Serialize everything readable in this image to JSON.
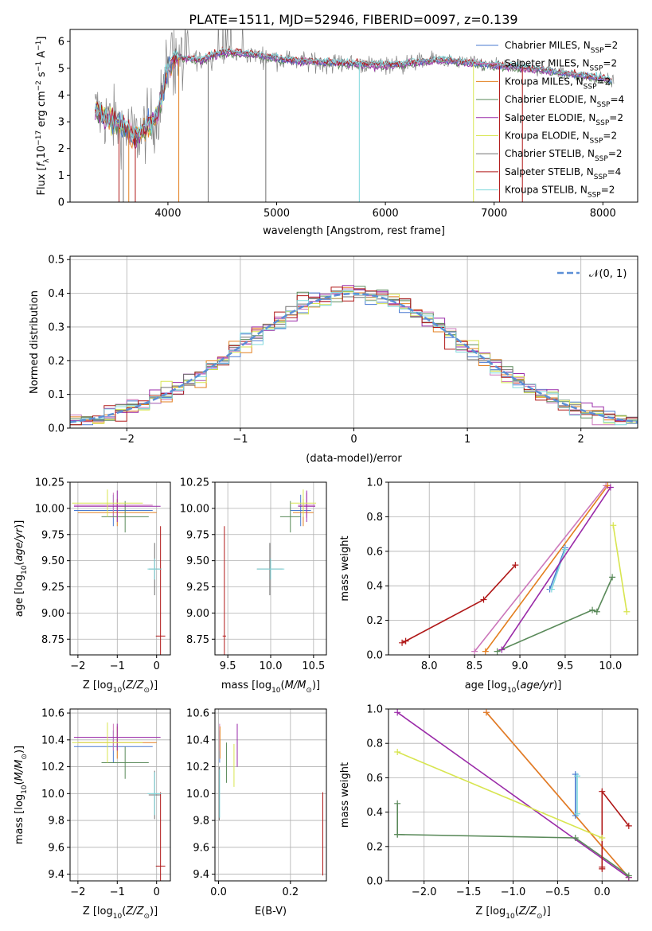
{
  "chart_data": [
    {
      "type": "line",
      "title": "PLATE=1511, MJD=52946, FIBERID=0097, z=0.139",
      "xlabel": "wavelength [Angstrom, rest frame]",
      "ylabel": "Flux [f_λ 10^-17 erg cm^-2 s^-1 A^-1]",
      "xlim": [
        3100,
        8320
      ],
      "ylim": [
        0,
        6.45
      ],
      "xticks": [
        "4000",
        "5000",
        "6000",
        "7000",
        "8000"
      ],
      "yticks": [
        "0",
        "1",
        "2",
        "3",
        "4",
        "5",
        "6"
      ],
      "legend_position": "right",
      "legend": [
        {
          "label": "Chabrier MILES, N_SSP=2",
          "color": "#4a7ad1"
        },
        {
          "label": "Salpeter MILES, N_SSP=2",
          "color": "#cc77bb"
        },
        {
          "label": "Kroupa MILES, N_SSP=2",
          "color": "#e37f1f"
        },
        {
          "label": "Chabrier ELODIE, N_SSP=4",
          "color": "#5a8a5a"
        },
        {
          "label": "Salpeter ELODIE, N_SSP=2",
          "color": "#9a2aa8"
        },
        {
          "label": "Kroupa ELODIE, N_SSP=2",
          "color": "#d8e550"
        },
        {
          "label": "Chabrier STELIB, N_SSP=2",
          "color": "#707070"
        },
        {
          "label": "Salpeter STELIB, N_SSP=4",
          "color": "#b01818"
        },
        {
          "label": "Kroupa STELIB, N_SSP=2",
          "color": "#7fd8dc"
        }
      ],
      "continuum_profile": {
        "x": [
          3330,
          3500,
          3600,
          3700,
          3800,
          3900,
          4000,
          4100,
          4300,
          4500,
          4800,
          5100,
          5500,
          6000,
          6500,
          7000,
          7500,
          8000,
          8100
        ],
        "y": [
          3.4,
          3.0,
          2.8,
          2.4,
          2.8,
          3.2,
          5.0,
          5.4,
          5.3,
          5.6,
          5.5,
          5.3,
          5.2,
          5.1,
          5.3,
          5.1,
          4.9,
          4.6,
          4.5
        ]
      }
    },
    {
      "type": "step",
      "xlabel": "(data-model)/error",
      "ylabel": "Normed distribution",
      "xlim": [
        -2.5,
        2.5
      ],
      "ylim": [
        0,
        0.51
      ],
      "xticks": [
        "−2",
        "−1",
        "0",
        "1",
        "2"
      ],
      "yticks": [
        "0.0",
        "0.1",
        "0.2",
        "0.3",
        "0.4",
        "0.5"
      ],
      "grid": true,
      "legend_position": "top-right",
      "reference_curve": {
        "label": "𝒩(0, 1)",
        "color": "#5b8fd6",
        "style": "dashed"
      },
      "bin_width": 0.1,
      "n_histograms": 9
    },
    {
      "type": "scatter",
      "xlabel": "Z [log10(Z/Z⊙)]",
      "ylabel": "age  [log10(age/yr)]",
      "xlim": [
        -2.2,
        0.35
      ],
      "ylim": [
        8.6,
        10.25
      ],
      "xticks": [
        "−2",
        "−1",
        "0"
      ],
      "yticks": [
        "8.75",
        "9.00",
        "9.25",
        "9.50",
        "9.75",
        "10.00",
        "10.25"
      ],
      "grid": true,
      "series": [
        {
          "color": "#4a7ad1",
          "points": [
            {
              "x": -1.1,
              "y": 9.98,
              "dx": 1.0,
              "dy": 0.15
            }
          ]
        },
        {
          "color": "#cc77bb",
          "points": [
            {
              "x": -1.1,
              "y": 10.03,
              "dx": 1.0,
              "dy": 0.12
            }
          ]
        },
        {
          "color": "#e37f1f",
          "points": [
            {
              "x": -1.0,
              "y": 9.96,
              "dx": 1.0,
              "dy": 0.13
            }
          ]
        },
        {
          "color": "#5a8a5a",
          "points": [
            {
              "x": -0.8,
              "y": 9.92,
              "dx": 0.6,
              "dy": 0.15
            }
          ]
        },
        {
          "color": "#9a2aa8",
          "points": [
            {
              "x": -1.0,
              "y": 10.02,
              "dx": 1.1,
              "dy": 0.15
            }
          ]
        },
        {
          "color": "#d8e550",
          "points": [
            {
              "x": -1.25,
              "y": 10.05,
              "dx": 0.9,
              "dy": 0.13
            }
          ]
        },
        {
          "color": "#707070",
          "points": [
            {
              "x": -0.05,
              "y": 9.42,
              "dx": 0.15,
              "dy": 0.25
            }
          ]
        },
        {
          "color": "#b01818",
          "points": [
            {
              "x": 0.1,
              "y": 8.78,
              "dx": 0.12,
              "dy": 1.05
            }
          ]
        },
        {
          "color": "#7fd8dc",
          "points": [
            {
              "x": -0.05,
              "y": 9.42,
              "dx": 0.18,
              "dy": 0.1
            }
          ]
        }
      ]
    },
    {
      "type": "scatter",
      "xlabel": "mass [log10(M/M⊙)]",
      "xlim": [
        9.35,
        10.65
      ],
      "ylim": [
        8.6,
        10.25
      ],
      "xticks": [
        "9.5",
        "10.0",
        "10.5"
      ],
      "yticks": [
        "8.75",
        "9.00",
        "9.25",
        "9.50",
        "9.75",
        "10.00",
        "10.25"
      ],
      "grid": true,
      "series": [
        {
          "color": "#4a7ad1",
          "points": [
            {
              "x": 10.35,
              "y": 9.98,
              "dx": 0.12,
              "dy": 0.15
            }
          ]
        },
        {
          "color": "#cc77bb",
          "points": [
            {
              "x": 10.42,
              "y": 10.03,
              "dx": 0.1,
              "dy": 0.12
            }
          ]
        },
        {
          "color": "#e37f1f",
          "points": [
            {
              "x": 10.38,
              "y": 9.96,
              "dx": 0.12,
              "dy": 0.13
            }
          ]
        },
        {
          "color": "#5a8a5a",
          "points": [
            {
              "x": 10.23,
              "y": 9.92,
              "dx": 0.12,
              "dy": 0.15
            }
          ]
        },
        {
          "color": "#9a2aa8",
          "points": [
            {
              "x": 10.42,
              "y": 10.02,
              "dx": 0.1,
              "dy": 0.15
            }
          ]
        },
        {
          "color": "#d8e550",
          "points": [
            {
              "x": 10.38,
              "y": 10.05,
              "dx": 0.15,
              "dy": 0.13
            }
          ]
        },
        {
          "color": "#707070",
          "points": [
            {
              "x": 9.99,
              "y": 9.42,
              "dx": 0.15,
              "dy": 0.25
            }
          ]
        },
        {
          "color": "#b01818",
          "points": [
            {
              "x": 9.46,
              "y": 8.78,
              "dx": 0.02,
              "dy": 1.05
            }
          ]
        },
        {
          "color": "#7fd8dc",
          "points": [
            {
              "x": 10.0,
              "y": 9.42,
              "dx": 0.16,
              "dy": 0.1
            }
          ]
        }
      ]
    },
    {
      "type": "line",
      "xlabel": "age  [log10(age/yr)]",
      "ylabel": "mass weight",
      "xlim": [
        7.55,
        10.3
      ],
      "ylim": [
        0,
        1.0
      ],
      "xticks": [
        "8.0",
        "8.5",
        "9.0",
        "9.5",
        "10.0"
      ],
      "yticks": [
        "0.0",
        "0.2",
        "0.4",
        "0.6",
        "0.8",
        "1.0"
      ],
      "grid": true,
      "series": [
        {
          "color": "#cc77bb",
          "x": [
            8.5,
            9.95
          ],
          "y": [
            0.02,
            0.98
          ]
        },
        {
          "color": "#e37f1f",
          "x": [
            8.62,
            9.97
          ],
          "y": [
            0.02,
            0.98
          ]
        },
        {
          "color": "#4a7ad1",
          "x": [
            9.33,
            9.5
          ],
          "y": [
            0.38,
            0.62
          ]
        },
        {
          "color": "#7fd8dc",
          "x": [
            9.35,
            9.5
          ],
          "y": [
            0.38,
            0.61
          ]
        },
        {
          "color": "#9a2aa8",
          "x": [
            8.8,
            10.0
          ],
          "y": [
            0.03,
            0.97
          ]
        },
        {
          "color": "#5a8a5a",
          "x": [
            8.75,
            9.8,
            9.85,
            10.02
          ],
          "y": [
            0.02,
            0.26,
            0.25,
            0.45
          ]
        },
        {
          "color": "#d8e550",
          "x": [
            10.03,
            10.18
          ],
          "y": [
            0.75,
            0.25
          ]
        },
        {
          "color": "#b01818",
          "x": [
            7.7,
            7.74,
            8.6,
            8.95
          ],
          "y": [
            0.07,
            0.08,
            0.32,
            0.52
          ]
        }
      ]
    },
    {
      "type": "scatter",
      "xlabel": "Z [log10(Z/Z⊙)]",
      "ylabel": "mass [log10(M/M⊙)]",
      "xlim": [
        -2.2,
        0.35
      ],
      "ylim": [
        9.35,
        10.63
      ],
      "xticks": [
        "−2",
        "−1",
        "0"
      ],
      "yticks": [
        "9.4",
        "9.6",
        "9.8",
        "10.0",
        "10.2",
        "10.4",
        "10.6"
      ],
      "grid": true,
      "series": [
        {
          "color": "#4a7ad1",
          "points": [
            {
              "x": -1.1,
              "y": 10.35,
              "dx": 1.0,
              "dy": 0.12
            }
          ]
        },
        {
          "color": "#cc77bb",
          "points": [
            {
              "x": -1.1,
              "y": 10.42,
              "dx": 1.0,
              "dy": 0.1
            }
          ]
        },
        {
          "color": "#e37f1f",
          "points": [
            {
              "x": -1.0,
              "y": 10.38,
              "dx": 1.0,
              "dy": 0.12
            }
          ]
        },
        {
          "color": "#5a8a5a",
          "points": [
            {
              "x": -0.8,
              "y": 10.23,
              "dx": 0.6,
              "dy": 0.12
            }
          ]
        },
        {
          "color": "#9a2aa8",
          "points": [
            {
              "x": -1.0,
              "y": 10.42,
              "dx": 1.1,
              "dy": 0.1
            }
          ]
        },
        {
          "color": "#d8e550",
          "points": [
            {
              "x": -1.25,
              "y": 10.38,
              "dx": 0.9,
              "dy": 0.15
            }
          ]
        },
        {
          "color": "#707070",
          "points": [
            {
              "x": -0.05,
              "y": 9.99,
              "dx": 0.15,
              "dy": 0.18
            }
          ]
        },
        {
          "color": "#b01818",
          "points": [
            {
              "x": 0.1,
              "y": 9.46,
              "dx": 0.12,
              "dy": 0.55
            }
          ]
        },
        {
          "color": "#7fd8dc",
          "points": [
            {
              "x": -0.05,
              "y": 10.0,
              "dx": 0.18,
              "dy": 0.16
            }
          ]
        }
      ]
    },
    {
      "type": "scatter",
      "xlabel": "E(B-V)",
      "xlim": [
        -0.01,
        0.3
      ],
      "ylim": [
        9.35,
        10.63
      ],
      "xticks": [
        "0.0",
        "0.2"
      ],
      "yticks": [
        "9.4",
        "9.6",
        "9.8",
        "10.0",
        "10.2",
        "10.4",
        "10.6"
      ],
      "grid": true,
      "series": [
        {
          "color": "#4a7ad1",
          "points": [
            {
              "x": 0.003,
              "y": 10.35,
              "dy": 0.12
            }
          ]
        },
        {
          "color": "#cc77bb",
          "points": [
            {
              "x": 0.003,
              "y": 10.42,
              "dy": 0.1
            }
          ]
        },
        {
          "color": "#e37f1f",
          "points": [
            {
              "x": 0.004,
              "y": 10.38,
              "dy": 0.12
            }
          ]
        },
        {
          "color": "#5a8a5a",
          "points": [
            {
              "x": 0.022,
              "y": 10.23,
              "dy": 0.15
            }
          ]
        },
        {
          "color": "#9a2aa8",
          "points": [
            {
              "x": 0.052,
              "y": 10.36,
              "dy": 0.16
            }
          ]
        },
        {
          "color": "#d8e550",
          "points": [
            {
              "x": 0.043,
              "y": 10.21,
              "dy": 0.16
            }
          ]
        },
        {
          "color": "#707070",
          "points": [
            {
              "x": 0.002,
              "y": 10.0,
              "dy": 0.2
            }
          ]
        },
        {
          "color": "#b01818",
          "points": [
            {
              "x": 0.29,
              "y": 9.7,
              "dy": 0.31
            }
          ]
        },
        {
          "color": "#7fd8dc",
          "points": [
            {
              "x": 0.003,
              "y": 10.0,
              "dy": 0.18
            }
          ]
        }
      ]
    },
    {
      "type": "line",
      "xlabel": "Z [log10(Z/Z⊙)]",
      "ylabel": "mass weight",
      "xlim": [
        -2.4,
        0.4
      ],
      "ylim": [
        0,
        1.0
      ],
      "xticks": [
        "−2.0",
        "−1.5",
        "−1.0",
        "−0.5",
        "0.0"
      ],
      "yticks": [
        "0.0",
        "0.2",
        "0.4",
        "0.6",
        "0.8",
        "1.0"
      ],
      "grid": true,
      "series": [
        {
          "color": "#cc77bb",
          "x": [
            -1.3,
            0.3
          ],
          "y": [
            0.98,
            0.02
          ]
        },
        {
          "color": "#e37f1f",
          "x": [
            -1.3,
            0.3
          ],
          "y": [
            0.98,
            0.02
          ]
        },
        {
          "color": "#4a7ad1",
          "x": [
            -0.3,
            -0.3
          ],
          "y": [
            0.38,
            0.62
          ]
        },
        {
          "color": "#7fd8dc",
          "x": [
            -0.28,
            -0.28
          ],
          "y": [
            0.39,
            0.61
          ]
        },
        {
          "color": "#9a2aa8",
          "x": [
            -2.3,
            0.3
          ],
          "y": [
            0.98,
            0.02
          ]
        },
        {
          "color": "#d8e550",
          "x": [
            -2.3,
            0.0
          ],
          "y": [
            0.75,
            0.25
          ]
        },
        {
          "color": "#5a8a5a",
          "x": [
            -2.3,
            -2.3,
            -2.3,
            -0.3,
            0.3
          ],
          "y": [
            0.45,
            0.27,
            0.27,
            0.25,
            0.03
          ]
        },
        {
          "color": "#b01818",
          "x": [
            0.0,
            0.0,
            0.0,
            0.3
          ],
          "y": [
            0.07,
            0.08,
            0.52,
            0.32
          ]
        }
      ]
    }
  ]
}
